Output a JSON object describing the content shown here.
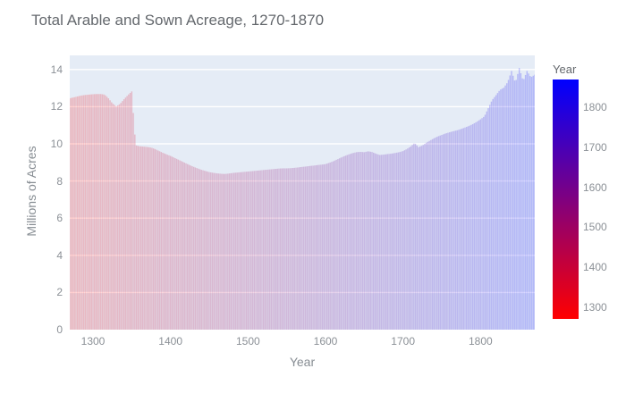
{
  "title": "Total Arable and Sown Acreage, 1270-1870",
  "xaxis": {
    "label": "Year",
    "ticks": [
      1300,
      1400,
      1500,
      1600,
      1700,
      1800
    ]
  },
  "yaxis": {
    "label": "Millions of Acres",
    "ticks": [
      0,
      2,
      4,
      6,
      8,
      10,
      12,
      14
    ]
  },
  "colorbar": {
    "title": "Year",
    "ticks": [
      1300,
      1400,
      1500,
      1600,
      1700,
      1800
    ],
    "range": [
      1270,
      1870
    ],
    "min_color": "#ff0000",
    "max_color": "#0000ff"
  },
  "colors": {
    "plot_bg": "#e5ecf6",
    "grid": "#ffffff",
    "bar_min": "#ff0000",
    "bar_max": "#0000ff",
    "bar_opacity": 0.22,
    "title_text": "#64686d",
    "axis_text": "#878d93",
    "tick_text": "#8b9096"
  },
  "chart_data": {
    "type": "bar",
    "title": "Total Arable and Sown Acreage, 1270-1870",
    "xlabel": "Year",
    "ylabel": "Millions of Acres",
    "x_range": [
      1270,
      1870
    ],
    "ylim": [
      0,
      14.76
    ],
    "grid": true,
    "legend": "colorbar (Year, red-to-blue scale) at right",
    "colorscale": "bluered",
    "sample_step_years": 5,
    "x": [
      1270,
      1275,
      1280,
      1285,
      1290,
      1295,
      1300,
      1305,
      1310,
      1315,
      1320,
      1325,
      1330,
      1335,
      1340,
      1345,
      1350,
      1355,
      1360,
      1365,
      1370,
      1375,
      1380,
      1385,
      1390,
      1395,
      1400,
      1405,
      1410,
      1415,
      1420,
      1425,
      1430,
      1435,
      1440,
      1445,
      1450,
      1455,
      1460,
      1465,
      1470,
      1475,
      1480,
      1485,
      1490,
      1495,
      1500,
      1505,
      1510,
      1515,
      1520,
      1525,
      1530,
      1535,
      1540,
      1545,
      1550,
      1555,
      1560,
      1565,
      1570,
      1575,
      1580,
      1585,
      1590,
      1595,
      1600,
      1605,
      1610,
      1615,
      1620,
      1625,
      1630,
      1635,
      1640,
      1645,
      1650,
      1655,
      1660,
      1665,
      1670,
      1675,
      1680,
      1685,
      1690,
      1695,
      1700,
      1705,
      1710,
      1715,
      1720,
      1725,
      1730,
      1735,
      1740,
      1745,
      1750,
      1755,
      1760,
      1765,
      1770,
      1775,
      1780,
      1785,
      1790,
      1795,
      1800,
      1805,
      1810,
      1815,
      1820,
      1825,
      1830,
      1835,
      1840,
      1845,
      1850,
      1855,
      1860,
      1865,
      1870
    ],
    "values": [
      12.45,
      12.5,
      12.55,
      12.6,
      12.63,
      12.65,
      12.67,
      12.68,
      12.68,
      12.65,
      12.45,
      12.18,
      12.02,
      12.15,
      12.4,
      12.62,
      12.82,
      9.92,
      9.87,
      9.85,
      9.83,
      9.8,
      9.72,
      9.62,
      9.52,
      9.43,
      9.35,
      9.25,
      9.15,
      9.05,
      8.95,
      8.85,
      8.76,
      8.68,
      8.6,
      8.54,
      8.48,
      8.44,
      8.41,
      8.39,
      8.38,
      8.4,
      8.43,
      8.45,
      8.47,
      8.49,
      8.51,
      8.53,
      8.55,
      8.57,
      8.59,
      8.61,
      8.63,
      8.65,
      8.67,
      8.68,
      8.68,
      8.69,
      8.71,
      8.73,
      8.76,
      8.78,
      8.81,
      8.83,
      8.86,
      8.88,
      8.91,
      8.98,
      9.06,
      9.16,
      9.26,
      9.35,
      9.43,
      9.5,
      9.55,
      9.57,
      9.55,
      9.6,
      9.56,
      9.47,
      9.4,
      9.42,
      9.45,
      9.47,
      9.51,
      9.55,
      9.61,
      9.72,
      9.86,
      10.05,
      9.82,
      9.91,
      10.06,
      10.18,
      10.3,
      10.4,
      10.48,
      10.56,
      10.62,
      10.68,
      10.73,
      10.8,
      10.88,
      10.96,
      11.06,
      11.18,
      11.32,
      11.48,
      11.92,
      12.36,
      12.62,
      12.9,
      13.02,
      13.32,
      13.92,
      13.28,
      14.08,
      13.38,
      13.92,
      13.58,
      13.72
    ]
  }
}
